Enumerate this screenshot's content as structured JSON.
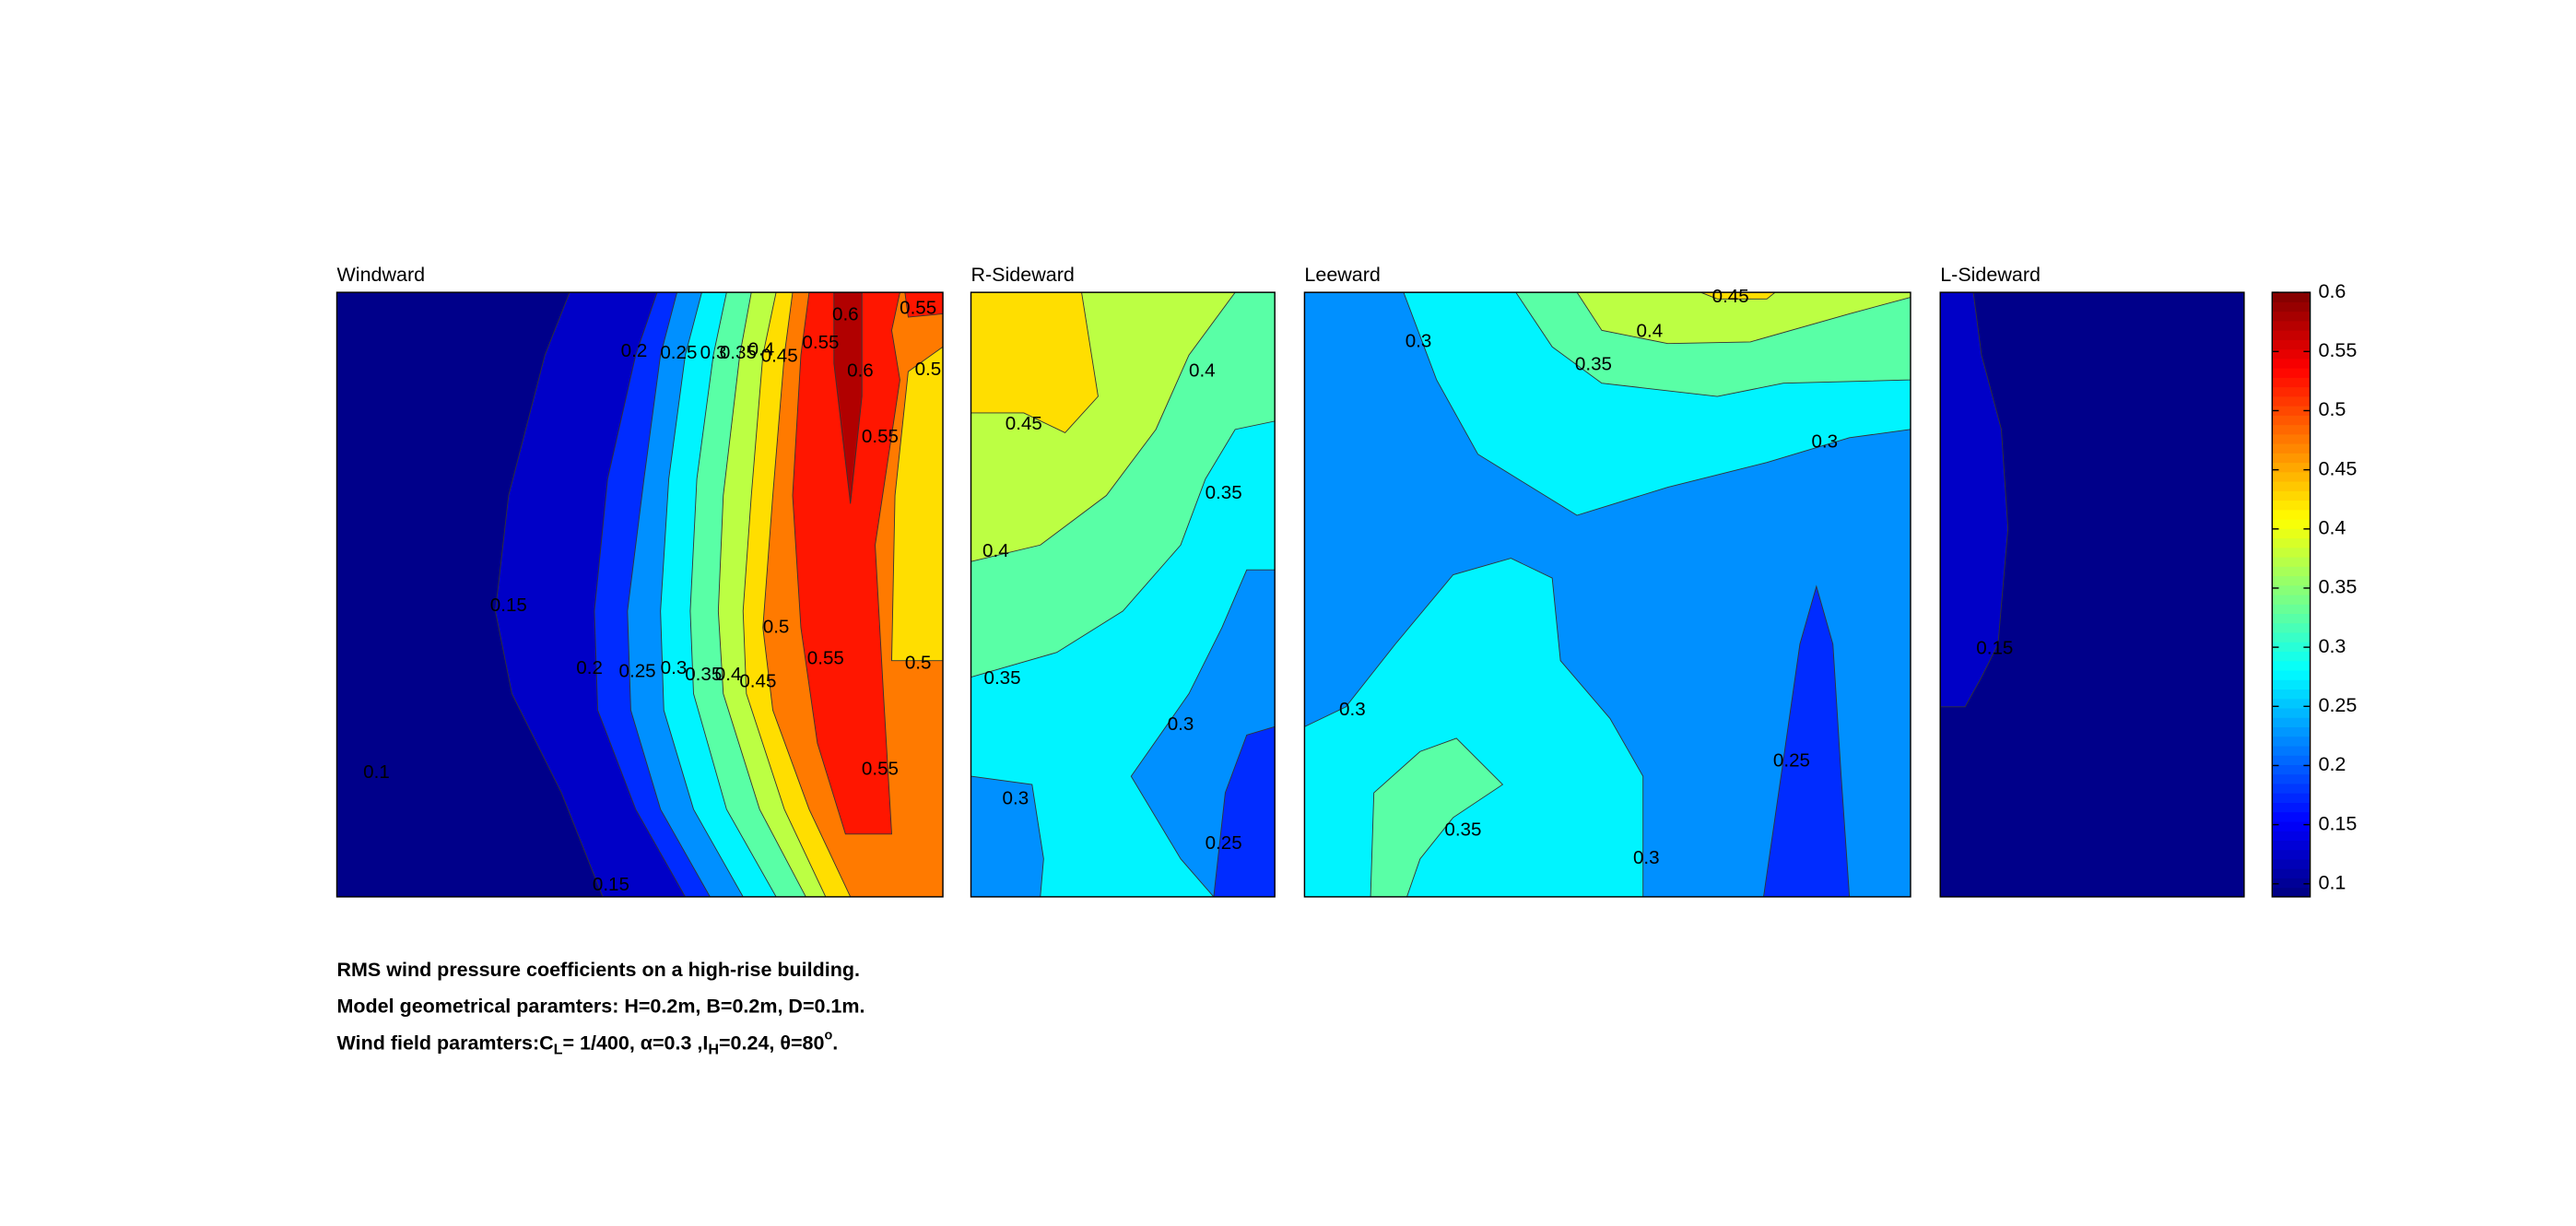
{
  "chart_data": [
    {
      "type": "contour",
      "title": "Windward",
      "contour_labels": [
        0.2,
        0.25,
        0.3,
        0.35,
        0.4,
        0.45,
        0.55,
        0.6,
        0.55,
        0.5,
        0.6,
        0.55,
        0.15,
        0.2,
        0.25,
        0.3,
        0.35,
        0.4,
        0.45,
        0.5,
        0.55,
        0.5,
        0.55,
        0.1,
        0.15
      ]
    },
    {
      "type": "contour",
      "title": "R-Sideward",
      "contour_labels": [
        0.4,
        0.45,
        0.4,
        0.35,
        0.35,
        0.3,
        0.3,
        0.25
      ]
    },
    {
      "type": "contour",
      "title": "Leeward",
      "contour_labels": [
        0.45,
        0.4,
        0.3,
        0.35,
        0.3,
        0.3,
        0.35,
        0.25,
        0.3
      ]
    },
    {
      "type": "contour",
      "title": "L-Sideward",
      "contour_labels": [
        0.15
      ]
    },
    {
      "type": "colorbar",
      "colormap": "jet",
      "ylim": [
        0.089,
        0.6
      ],
      "yticks": [
        0.1,
        0.15,
        0.2,
        0.25,
        0.3,
        0.35,
        0.4,
        0.45,
        0.5,
        0.55,
        0.6
      ]
    }
  ],
  "caption": [
    "RMS wind pressure coefficients on a high-rise building.",
    "Model geometrical paramters: H=0.2m, B=0.2m, D=0.1m.",
    [
      "Wind field paramters:C",
      "L",
      "= 1/400, α=0.3 ,I",
      "H",
      "=0.24, θ=80",
      "o",
      "."
    ]
  ]
}
